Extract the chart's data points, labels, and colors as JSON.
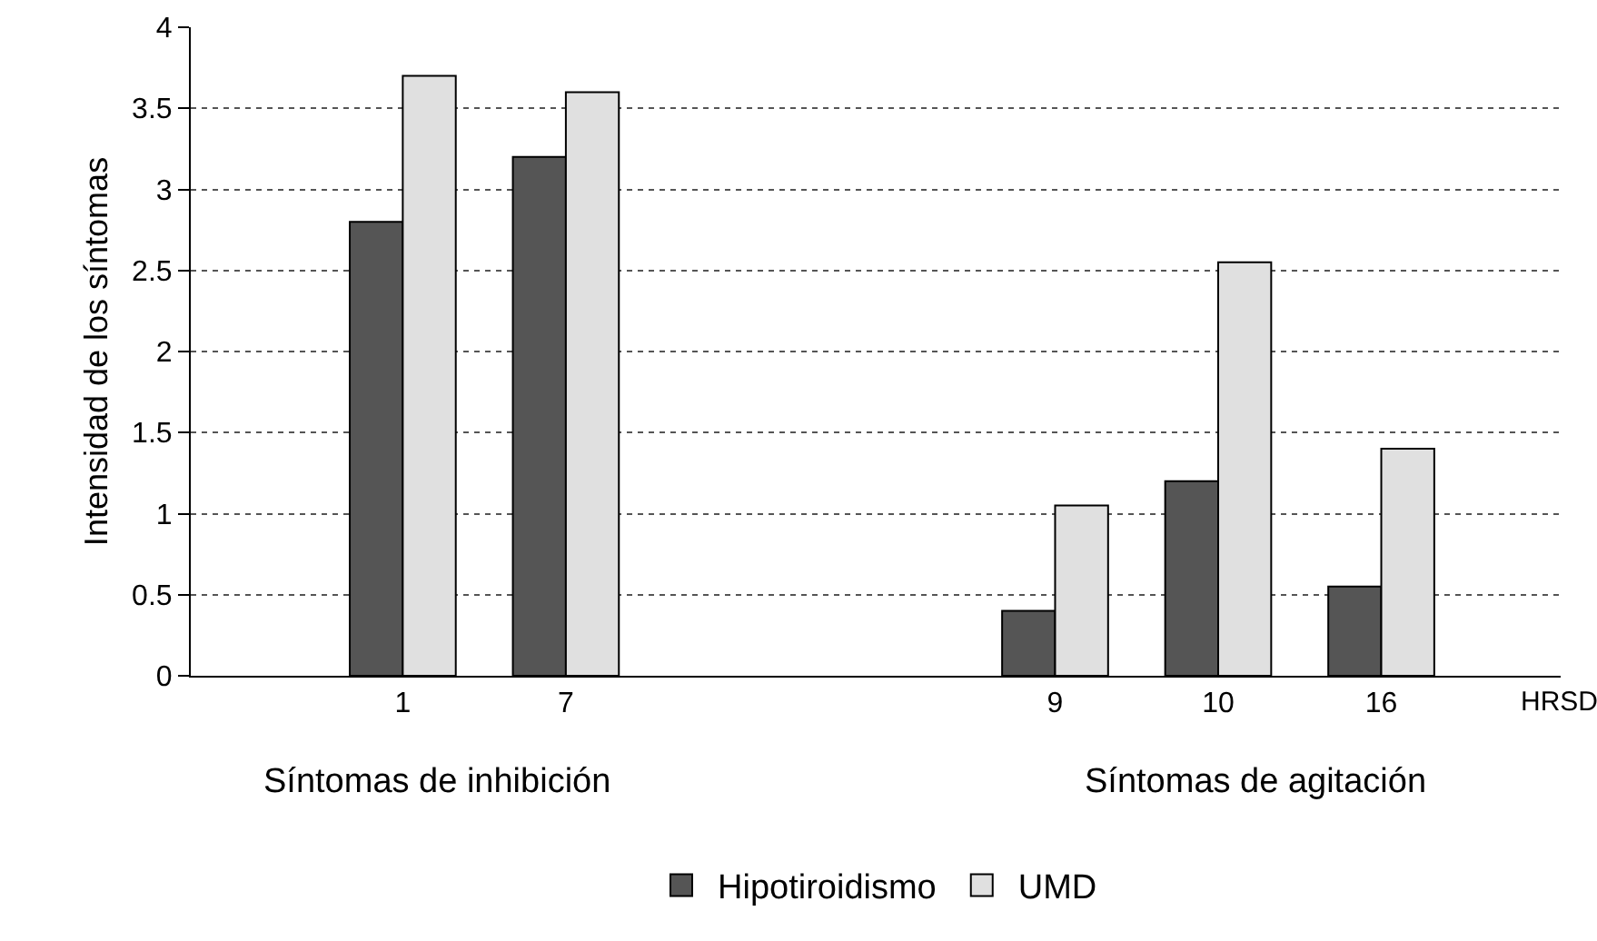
{
  "chart_data": {
    "type": "bar",
    "ylabel": "Intensidad de los síntomas",
    "xlabel": "HRSD",
    "categories": [
      "1",
      "7",
      null,
      null,
      "9",
      "10",
      "16"
    ],
    "series": [
      {
        "name": "Hipotiroidismo",
        "color": "#555555",
        "values": [
          2.8,
          3.2,
          null,
          null,
          0.4,
          1.2,
          0.55
        ]
      },
      {
        "name": "UMD",
        "color": "#e0e0e0",
        "values": [
          3.7,
          3.6,
          null,
          null,
          1.05,
          2.55,
          1.4
        ]
      }
    ],
    "ylim": [
      0,
      4
    ],
    "yticks": [
      0,
      0.5,
      1,
      1.5,
      2,
      2.5,
      3,
      3.5,
      4
    ],
    "grid": "y",
    "legend": "bottom",
    "annotations": [
      "Síntomas de inhibición",
      "Síntomas de agitación"
    ]
  }
}
